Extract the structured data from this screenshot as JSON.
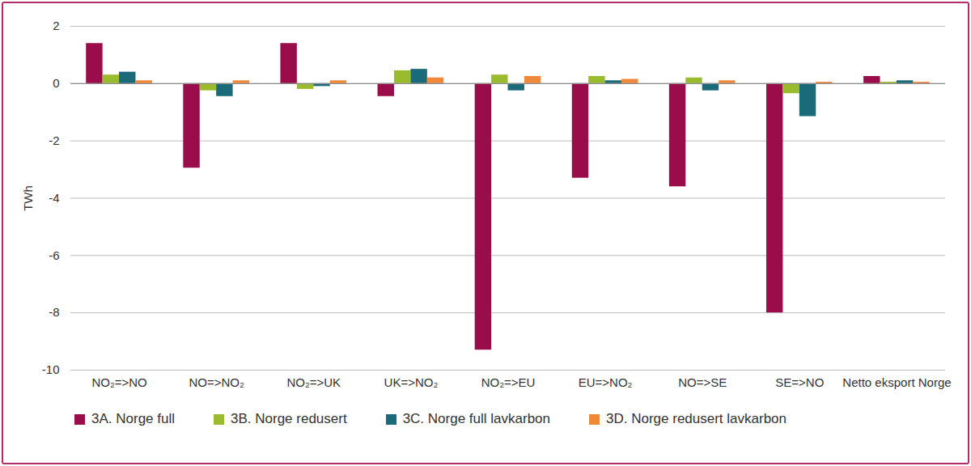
{
  "chart_data": {
    "type": "bar",
    "categories": [
      "NO₂=>NO",
      "NO=>NO₂",
      "NO₂=>UK",
      "UK=>NO₂",
      "NO₂=>EU",
      "EU=>NO₂",
      "NO=>SE",
      "SE=>NO",
      "Netto eksport Norge"
    ],
    "series": [
      {
        "name": "3A. Norge full",
        "color": "#9b0d4a",
        "values": [
          1.4,
          -2.95,
          1.4,
          -0.45,
          -9.3,
          -3.3,
          -3.6,
          -8.0,
          0.25
        ]
      },
      {
        "name": "3B. Norge redusert",
        "color": "#9bbb2f",
        "values": [
          0.3,
          -0.25,
          -0.2,
          0.45,
          0.3,
          0.25,
          0.2,
          -0.35,
          0.05
        ]
      },
      {
        "name": "3C. Norge full lavkarbon",
        "color": "#1a6a7a",
        "values": [
          0.4,
          -0.45,
          -0.1,
          0.5,
          -0.25,
          0.1,
          -0.25,
          -1.15,
          0.1
        ]
      },
      {
        "name": "3D. Norge redusert lavkarbon",
        "color": "#f0883a",
        "values": [
          0.1,
          0.1,
          0.1,
          0.2,
          0.25,
          0.15,
          0.1,
          0.05,
          0.05
        ]
      }
    ],
    "ylabel": "TWh",
    "ylim": [
      -10,
      2
    ],
    "yticks": [
      -10,
      -8,
      -6,
      -4,
      -2,
      0,
      2
    ],
    "grid": true,
    "legend": "bottom"
  }
}
